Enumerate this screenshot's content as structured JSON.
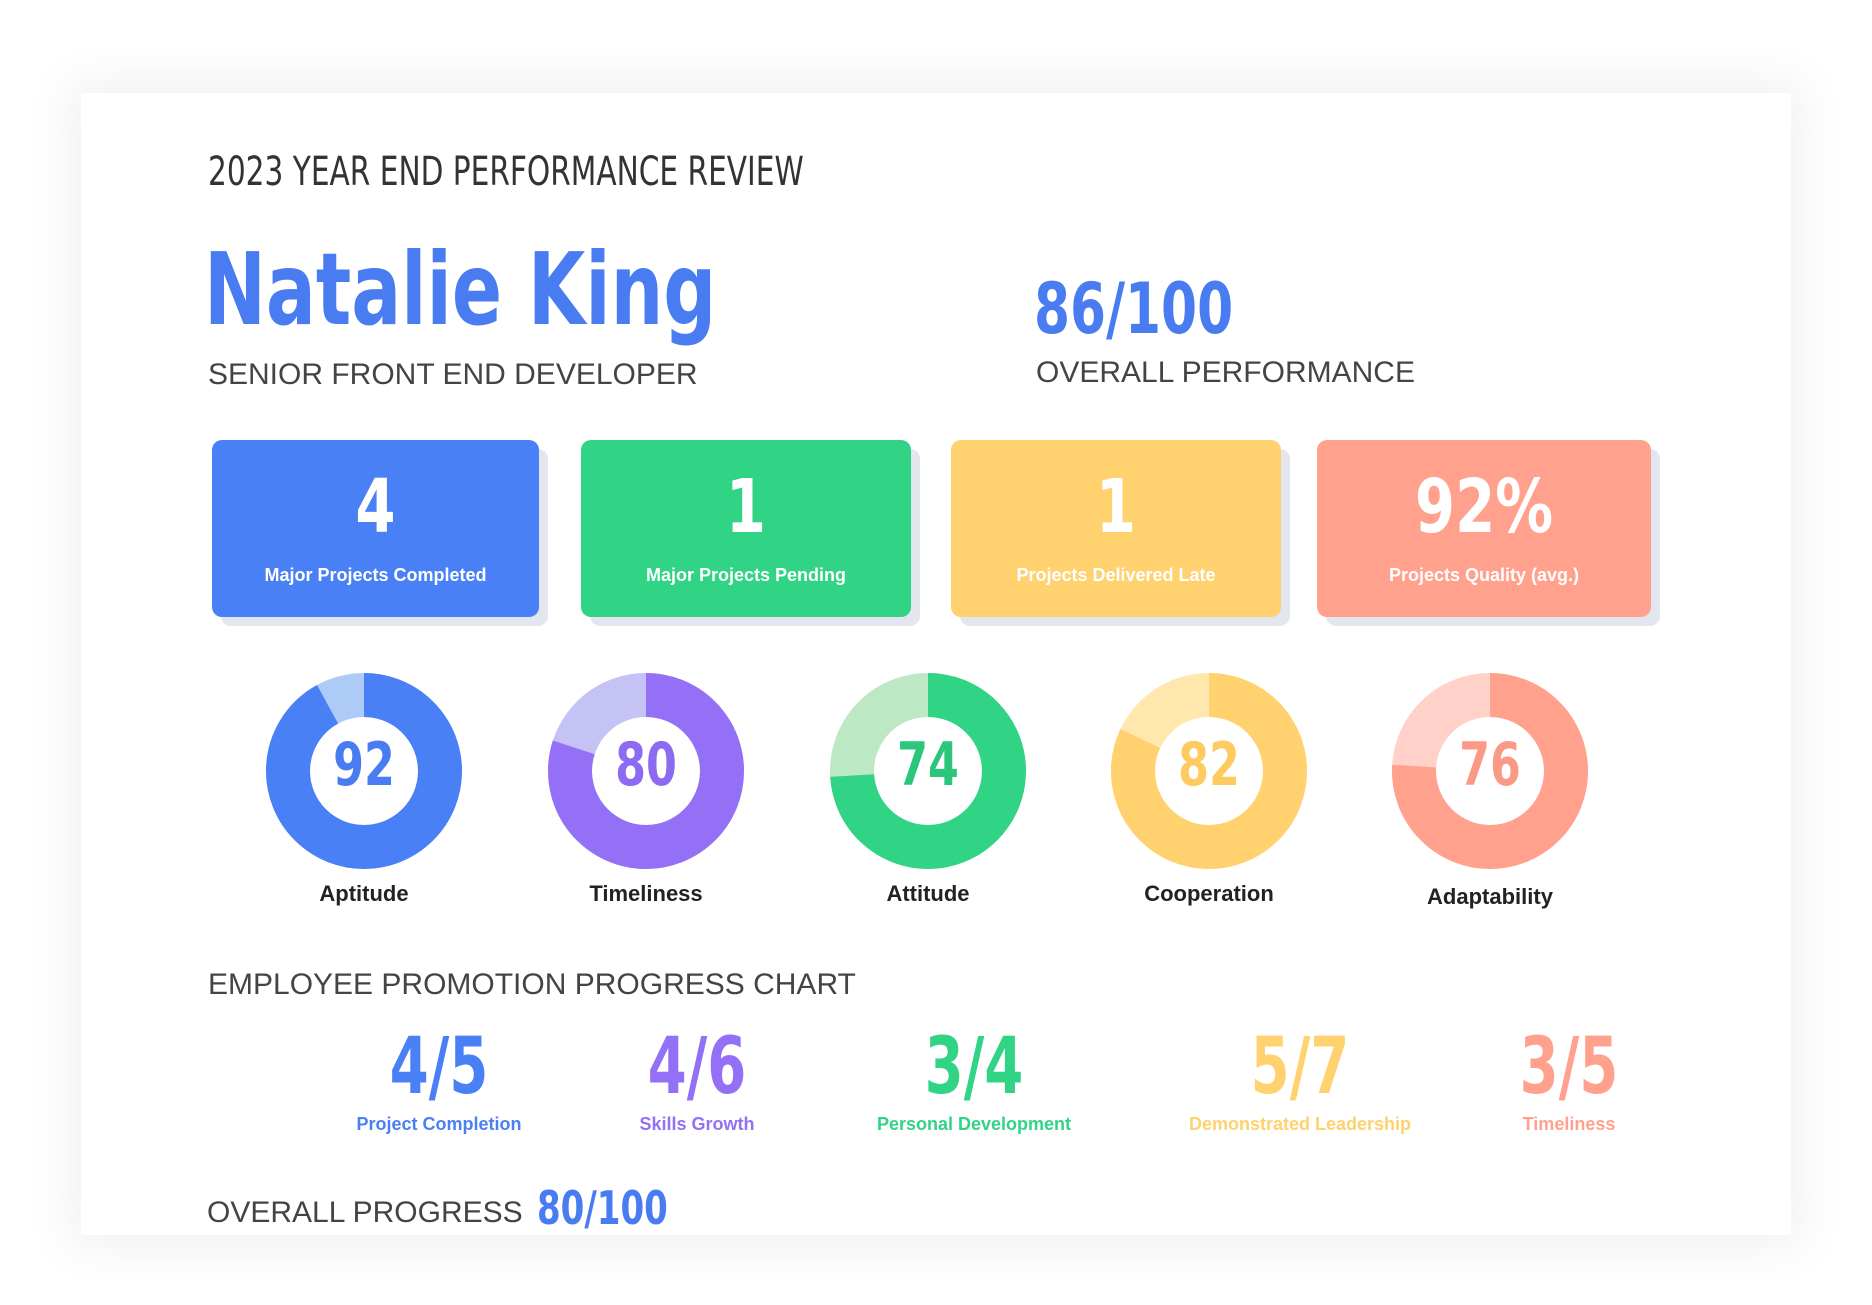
{
  "report": {
    "title": "2023 YEAR END PERFORMANCE REVIEW",
    "employee_name": "Natalie King",
    "employee_role": "SENIOR FRONT END DEVELOPER",
    "overall_score": "86/100",
    "overall_label": "OVERALL PERFORMANCE"
  },
  "stats": [
    {
      "value": "4",
      "label": "Major Projects Completed",
      "color": "#4a80f5"
    },
    {
      "value": "1",
      "label": "Major Projects Pending",
      "color": "#31d384"
    },
    {
      "value": "1",
      "label": "Projects Delivered Late",
      "color": "#ffd16f"
    },
    {
      "value": "92%",
      "label": "Projects Quality (avg.)",
      "color": "#ffa18d"
    }
  ],
  "scores": [
    {
      "value": "92",
      "percent": 92,
      "label": "Aptitude",
      "color": "#4a80f5",
      "track": "#aecbf7",
      "text_color": "#4a7cf1"
    },
    {
      "value": "80",
      "percent": 80,
      "label": "Timeliness",
      "color": "#9370f5",
      "track": "#c5c2f5",
      "text_color": "#8c6bf2"
    },
    {
      "value": "74",
      "percent": 74,
      "label": "Attitude",
      "color": "#31d384",
      "track": "#bde8c4",
      "text_color": "#2ac77a"
    },
    {
      "value": "82",
      "percent": 82,
      "label": "Cooperation",
      "color": "#ffd16f",
      "track": "#ffe7ad",
      "text_color": "#fdcb5f"
    },
    {
      "value": "76",
      "percent": 76,
      "label": "Adaptability",
      "color": "#ffa18d",
      "track": "#ffd1c8",
      "text_color": "#fa9a86"
    }
  ],
  "promotion": {
    "title": "EMPLOYEE PROMOTION PROGRESS CHART",
    "items": [
      {
        "value": "4/5",
        "label": "Project Completion",
        "color": "#4a80f5"
      },
      {
        "value": "4/6",
        "label": "Skills Growth",
        "color": "#9370f5"
      },
      {
        "value": "3/4",
        "label": "Personal Development",
        "color": "#31d384"
      },
      {
        "value": "5/7",
        "label": "Demonstrated Leadership",
        "color": "#ffd16f"
      },
      {
        "value": "3/5",
        "label": "Timeliness",
        "color": "#ffa18d"
      }
    ]
  },
  "overall_progress": {
    "label": "OVERALL PROGRESS",
    "value": "80/100"
  }
}
